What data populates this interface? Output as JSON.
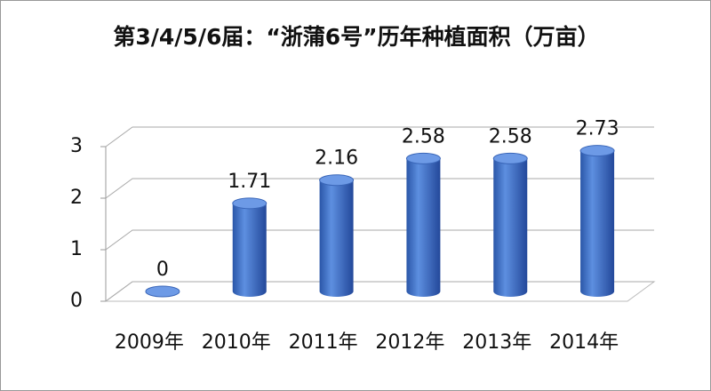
{
  "chart_data": {
    "type": "bar3d",
    "title": "第3/4/5/6届：“浙蒲6号”历年种植面积（万亩）",
    "categories": [
      "2009年",
      "2010年",
      "2011年",
      "2012年",
      "2013年",
      "2014年"
    ],
    "values": [
      0,
      1.71,
      2.16,
      2.58,
      2.58,
      2.73
    ],
    "color": "#3f6fc4",
    "ylim": [
      0,
      3
    ],
    "yticks": [
      0,
      1,
      2,
      3
    ],
    "grid": true
  }
}
